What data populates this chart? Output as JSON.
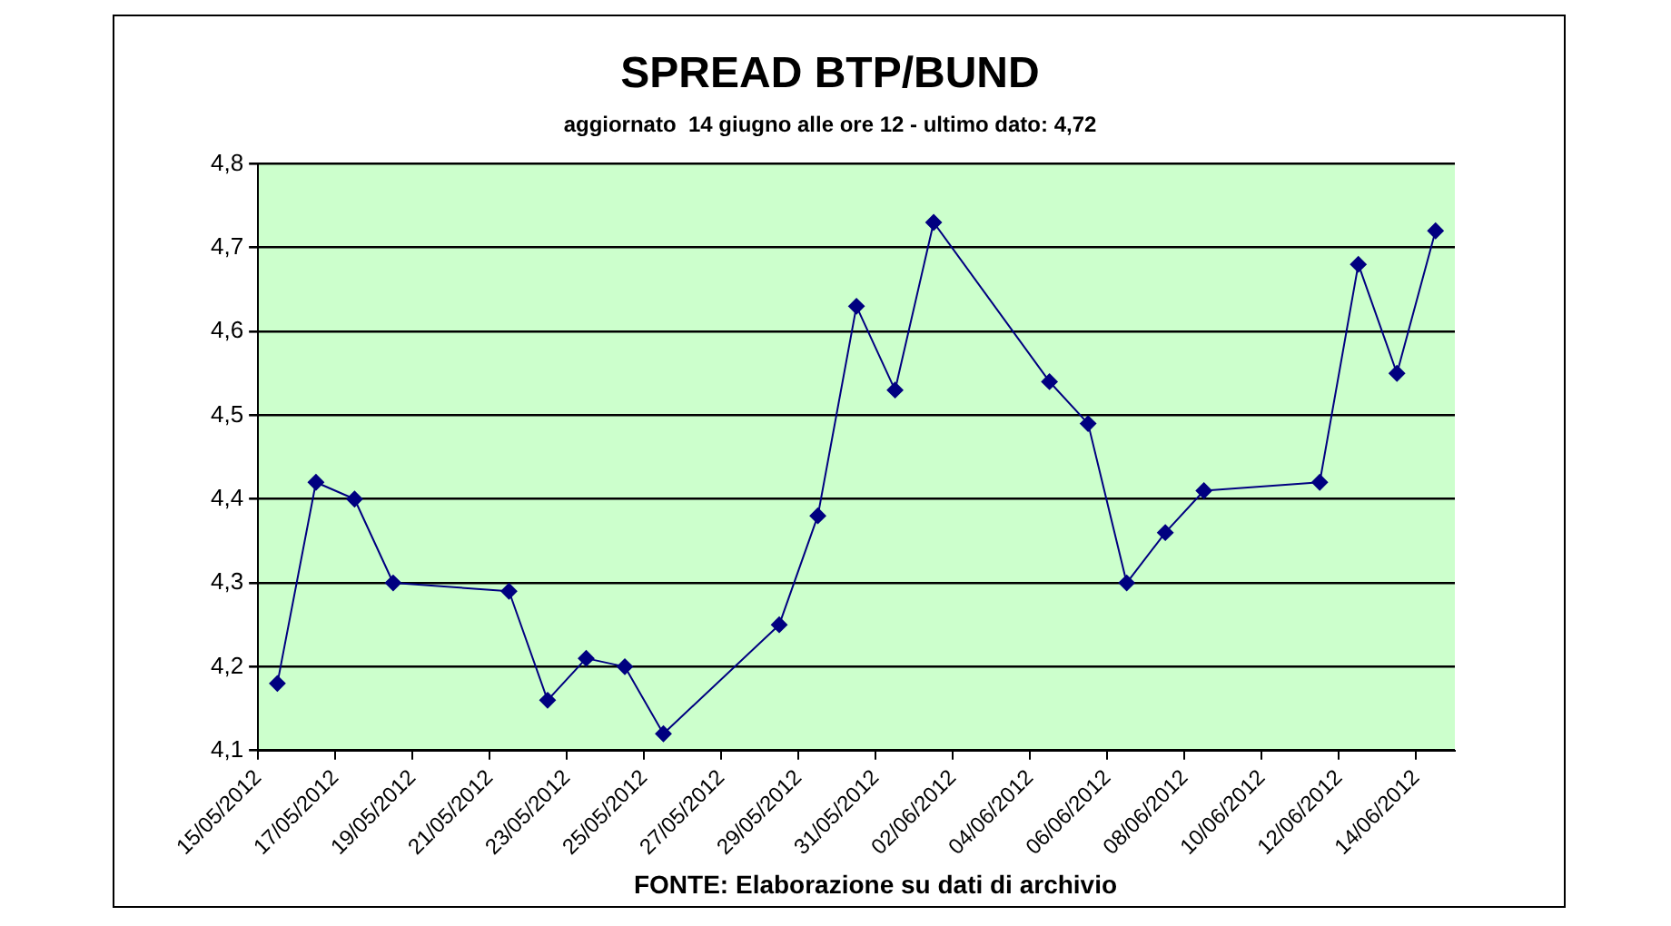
{
  "chart_data": {
    "type": "line",
    "title": "SPREAD BTP/BUND",
    "subtitle": "aggiornato  14 giugno alle ore 12 - ultimo dato: 4,72",
    "annotations": [
      "FONTE: Elaborazione su dati di archivio"
    ],
    "x": [
      "2012-05-15",
      "2012-05-16",
      "2012-05-17",
      "2012-05-18",
      "2012-05-21",
      "2012-05-22",
      "2012-05-23",
      "2012-05-24",
      "2012-05-25",
      "2012-05-28",
      "2012-05-29",
      "2012-05-30",
      "2012-05-31",
      "2012-06-01",
      "2012-06-04",
      "2012-06-05",
      "2012-06-06",
      "2012-06-07",
      "2012-06-08",
      "2012-06-11",
      "2012-06-12",
      "2012-06-13",
      "2012-06-14"
    ],
    "series": [
      {
        "color": "#000080",
        "values": [
          4.18,
          4.42,
          4.4,
          4.3,
          4.29,
          4.16,
          4.21,
          4.2,
          4.12,
          4.25,
          4.38,
          4.63,
          4.53,
          4.73,
          4.54,
          4.49,
          4.3,
          4.36,
          4.41,
          4.42,
          4.68,
          4.55,
          4.72
        ]
      }
    ],
    "xlim": [
      "2012-05-14T12:00",
      "2012-06-14T12:00"
    ],
    "xticks": [
      {
        "value": "2012-05-14T12:00",
        "label": "15/05/2012"
      },
      {
        "value": "2012-05-16T12:00",
        "label": "17/05/2012"
      },
      {
        "value": "2012-05-18T12:00",
        "label": "19/05/2012"
      },
      {
        "value": "2012-05-20T12:00",
        "label": "21/05/2012"
      },
      {
        "value": "2012-05-22T12:00",
        "label": "23/05/2012"
      },
      {
        "value": "2012-05-24T12:00",
        "label": "25/05/2012"
      },
      {
        "value": "2012-05-26T12:00",
        "label": "27/05/2012"
      },
      {
        "value": "2012-05-28T12:00",
        "label": "29/05/2012"
      },
      {
        "value": "2012-05-30T12:00",
        "label": "31/05/2012"
      },
      {
        "value": "2012-06-01T12:00",
        "label": "02/06/2012"
      },
      {
        "value": "2012-06-03T12:00",
        "label": "04/06/2012"
      },
      {
        "value": "2012-06-05T12:00",
        "label": "06/06/2012"
      },
      {
        "value": "2012-06-07T12:00",
        "label": "08/06/2012"
      },
      {
        "value": "2012-06-09T12:00",
        "label": "10/06/2012"
      },
      {
        "value": "2012-06-11T12:00",
        "label": "12/06/2012"
      },
      {
        "value": "2012-06-13T12:00",
        "label": "14/06/2012"
      }
    ],
    "ylim": [
      4.1,
      4.8
    ],
    "yticks": [
      {
        "value": 4.1,
        "label": "4,1"
      },
      {
        "value": 4.2,
        "label": "4,2"
      },
      {
        "value": 4.3,
        "label": "4,3"
      },
      {
        "value": 4.4,
        "label": "4,4"
      },
      {
        "value": 4.5,
        "label": "4,5"
      },
      {
        "value": 4.6,
        "label": "4,6"
      },
      {
        "value": 4.7,
        "label": "4,7"
      },
      {
        "value": 4.8,
        "label": "4,8"
      }
    ],
    "grid": "y",
    "legend": false,
    "marker": "diamond",
    "line_style": "solid"
  }
}
